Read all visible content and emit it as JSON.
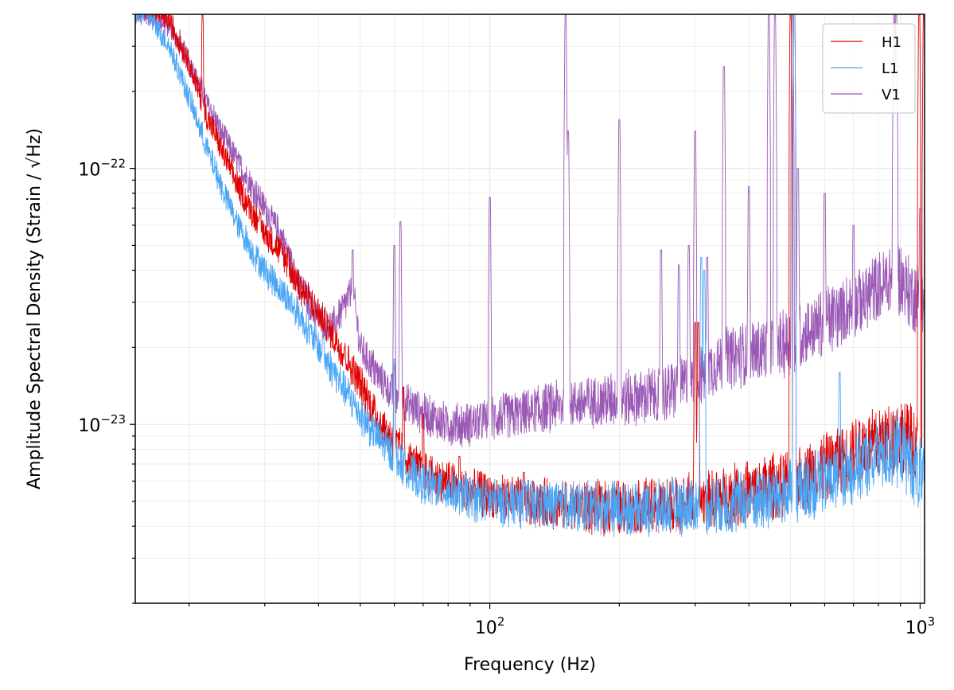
{
  "chart_data": {
    "type": "line",
    "title": "",
    "xlabel": "Frequency (Hz)",
    "ylabel": "Amplitude Spectral Density (Strain / √Hz)",
    "xscale": "log",
    "yscale": "log",
    "xlim": [
      15.0,
      1024.0
    ],
    "ylim": [
      2e-24,
      4e-22
    ],
    "grid": true,
    "legend_position": "top-right",
    "x_tick_labels": [
      {
        "value": 100,
        "base": "10",
        "exp": "2"
      },
      {
        "value": 1000,
        "base": "10",
        "exp": "3"
      }
    ],
    "y_tick_labels": [
      {
        "value": 1e-22,
        "base": "10",
        "exp": "−22"
      },
      {
        "value": 1e-23,
        "base": "10",
        "exp": "−23"
      }
    ],
    "series": [
      {
        "name": "H1",
        "color": "#e00000",
        "points": [
          [
            16,
            4.2e-22
          ],
          [
            18,
            3.8e-22
          ],
          [
            20,
            2.6e-22
          ],
          [
            22,
            1.6e-22
          ],
          [
            24,
            1.15e-22
          ],
          [
            26,
            8.5e-23
          ],
          [
            28,
            6.8e-23
          ],
          [
            30,
            5.6e-23
          ],
          [
            33,
            4.6e-23
          ],
          [
            36,
            3.5e-23
          ],
          [
            40,
            2.7e-23
          ],
          [
            45,
            2e-23
          ],
          [
            50,
            1.45e-23
          ],
          [
            55,
            1.05e-23
          ],
          [
            60,
            8.5e-24
          ],
          [
            65,
            7.2e-24
          ],
          [
            70,
            6.5e-24
          ],
          [
            80,
            5.9e-24
          ],
          [
            90,
            5.5e-24
          ],
          [
            100,
            5.2e-24
          ],
          [
            120,
            5e-24
          ],
          [
            150,
            4.8e-24
          ],
          [
            200,
            4.7e-24
          ],
          [
            250,
            4.8e-24
          ],
          [
            300,
            5e-24
          ],
          [
            400,
            5.4e-24
          ],
          [
            500,
            6e-24
          ],
          [
            600,
            6.8e-24
          ],
          [
            700,
            7.8e-24
          ],
          [
            800,
            8.6e-24
          ],
          [
            900,
            9.2e-24
          ],
          [
            960,
            8.5e-24
          ],
          [
            1024,
            7.5e-24
          ]
        ],
        "peaks": [
          [
            21.5,
            4e-22
          ],
          [
            29,
            6.2e-23
          ],
          [
            34,
            4.9e-23
          ],
          [
            38,
            3.1e-23
          ],
          [
            41,
            2.1e-23
          ],
          [
            46,
            2e-23
          ],
          [
            60,
            1.7e-23
          ],
          [
            63,
            1.4e-23
          ],
          [
            70,
            1.1e-23
          ],
          [
            85,
            7.5e-24
          ],
          [
            120,
            6.5e-24
          ],
          [
            300,
            2.5e-23
          ],
          [
            305,
            2.5e-23
          ],
          [
            500,
            4e-22
          ],
          [
            510,
            4e-22
          ],
          [
            995,
            4e-22
          ],
          [
            1020,
            4e-22
          ]
        ]
      },
      {
        "name": "L1",
        "color": "#4ba6f5",
        "points": [
          [
            16,
            4e-22
          ],
          [
            18,
            3e-22
          ],
          [
            20,
            1.9e-22
          ],
          [
            22,
            1.2e-22
          ],
          [
            24,
            8.2e-23
          ],
          [
            26,
            6e-23
          ],
          [
            28,
            4.8e-23
          ],
          [
            30,
            4e-23
          ],
          [
            33,
            3.3e-23
          ],
          [
            36,
            2.7e-23
          ],
          [
            40,
            2e-23
          ],
          [
            45,
            1.45e-23
          ],
          [
            50,
            1.1e-23
          ],
          [
            55,
            8.8e-24
          ],
          [
            60,
            7.5e-24
          ],
          [
            65,
            6.5e-24
          ],
          [
            70,
            5.9e-24
          ],
          [
            80,
            5.5e-24
          ],
          [
            90,
            5.2e-24
          ],
          [
            100,
            5e-24
          ],
          [
            120,
            4.9e-24
          ],
          [
            150,
            4.8e-24
          ],
          [
            200,
            4.7e-24
          ],
          [
            250,
            4.7e-24
          ],
          [
            300,
            4.8e-24
          ],
          [
            400,
            5e-24
          ],
          [
            500,
            5.4e-24
          ],
          [
            600,
            6e-24
          ],
          [
            700,
            6.8e-24
          ],
          [
            800,
            7.5e-24
          ],
          [
            900,
            8e-24
          ],
          [
            960,
            7e-24
          ],
          [
            1024,
            6e-24
          ]
        ],
        "peaks": [
          [
            41,
            2.3e-23
          ],
          [
            60,
            1.8e-23
          ],
          [
            120,
            6e-24
          ],
          [
            310,
            4.5e-23
          ],
          [
            315,
            4e-23
          ],
          [
            510,
            4e-22
          ],
          [
            650,
            1.6e-23
          ]
        ]
      },
      {
        "name": "V1",
        "color": "#9b59b6",
        "points": [
          [
            16,
            4e-22
          ],
          [
            18,
            3.6e-22
          ],
          [
            20,
            2.6e-22
          ],
          [
            22,
            1.8e-22
          ],
          [
            24,
            1.35e-22
          ],
          [
            26,
            1.05e-22
          ],
          [
            28,
            8.5e-23
          ],
          [
            30,
            7e-23
          ],
          [
            33,
            5.3e-23
          ],
          [
            36,
            3.5e-23
          ],
          [
            40,
            2.6e-23
          ],
          [
            43,
            2.4e-23
          ],
          [
            46,
            2.9e-23
          ],
          [
            48,
            3.4e-23
          ],
          [
            50,
            2e-23
          ],
          [
            55,
            1.55e-23
          ],
          [
            60,
            1.3e-23
          ],
          [
            70,
            1.1e-23
          ],
          [
            80,
            1e-23
          ],
          [
            90,
            1e-23
          ],
          [
            100,
            1.05e-23
          ],
          [
            120,
            1.1e-23
          ],
          [
            150,
            1.2e-23
          ],
          [
            200,
            1.25e-23
          ],
          [
            250,
            1.3e-23
          ],
          [
            300,
            1.5e-23
          ],
          [
            350,
            1.8e-23
          ],
          [
            400,
            1.9e-23
          ],
          [
            500,
            2.1e-23
          ],
          [
            600,
            2.5e-23
          ],
          [
            700,
            2.9e-23
          ],
          [
            800,
            3.4e-23
          ],
          [
            880,
            3.8e-23
          ],
          [
            950,
            3.3e-23
          ],
          [
            1024,
            2.9e-23
          ]
        ],
        "peaks": [
          [
            48,
            4.8e-23
          ],
          [
            60,
            5e-23
          ],
          [
            62,
            6.2e-23
          ],
          [
            100,
            7.7e-23
          ],
          [
            150,
            4e-22
          ],
          [
            152,
            1.4e-22
          ],
          [
            200,
            1.55e-22
          ],
          [
            250,
            4.8e-23
          ],
          [
            275,
            4.2e-23
          ],
          [
            290,
            5e-23
          ],
          [
            300,
            1.4e-22
          ],
          [
            320,
            4.5e-23
          ],
          [
            350,
            2.5e-22
          ],
          [
            400,
            8.5e-23
          ],
          [
            445,
            4e-22
          ],
          [
            460,
            4e-22
          ],
          [
            505,
            4e-22
          ],
          [
            520,
            1e-22
          ],
          [
            600,
            8e-23
          ],
          [
            700,
            6e-23
          ],
          [
            870,
            4e-22
          ],
          [
            880,
            4e-22
          ],
          [
            1000,
            7e-23
          ]
        ]
      }
    ]
  }
}
